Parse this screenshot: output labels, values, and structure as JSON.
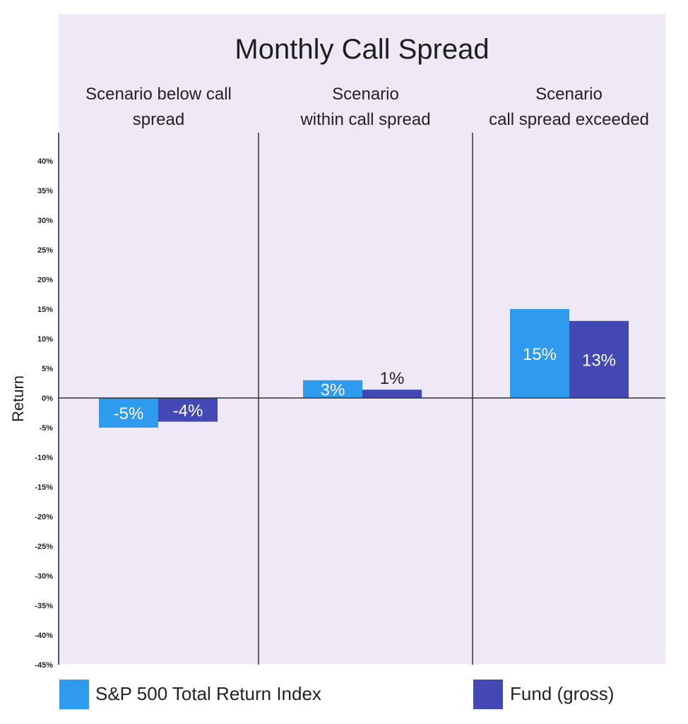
{
  "chart_data": {
    "type": "bar",
    "title": "Monthly Call Spread",
    "categories": [
      "Scenario below call spread",
      "Scenario\nwithin call spread",
      "Scenario\ncall spread exceeded"
    ],
    "category_lines": [
      [
        "Scenario below call",
        "spread"
      ],
      [
        "Scenario",
        "within call spread"
      ],
      [
        "Scenario",
        "call spread exceeded"
      ]
    ],
    "series": [
      {
        "name": "S&P 500 Total Return Index",
        "color": "#2e9bef",
        "values": [
          -5,
          3,
          15
        ],
        "labels": [
          "-5%",
          "3%",
          "15%"
        ]
      },
      {
        "name": "Fund (gross)",
        "color": "#4348b5",
        "values": [
          -4,
          1.4,
          13
        ],
        "labels": [
          "-4%",
          "1%",
          "13%"
        ]
      }
    ],
    "ylabel": "Return",
    "xlabel": "",
    "ylim": [
      -45,
      40
    ],
    "yticks": [
      40,
      35,
      30,
      25,
      20,
      15,
      10,
      5,
      0,
      -5,
      -10,
      -15,
      -20,
      -25,
      -30,
      -35,
      -40,
      -45
    ],
    "ytick_labels": [
      "40%",
      "35%",
      "30%",
      "25%",
      "20%",
      "15%",
      "10%",
      "5%",
      "0%",
      "-5%",
      "-10%",
      "-15%",
      "-20%",
      "-25%",
      "-30%",
      "-35%",
      "-40%",
      "-45%"
    ],
    "grid": false,
    "legend": "bottom",
    "label_colors": {
      "inside": "#ffffff",
      "outside": "#222222"
    }
  }
}
